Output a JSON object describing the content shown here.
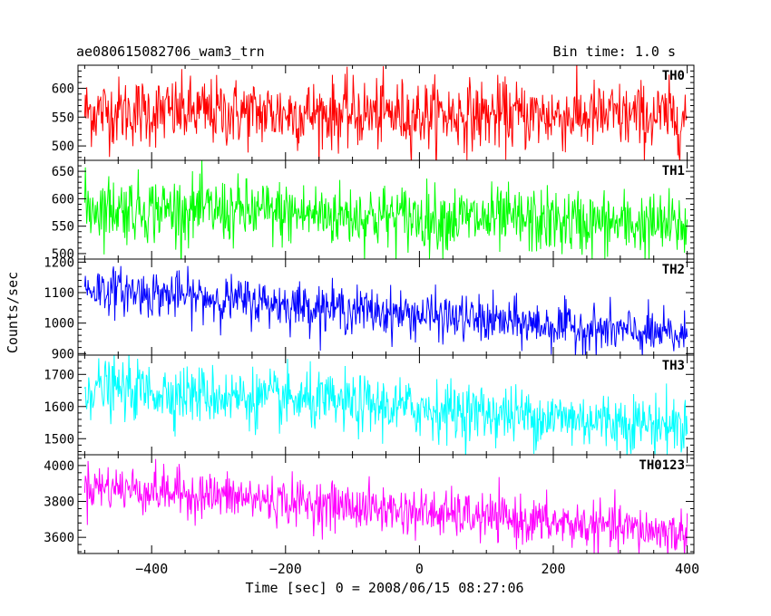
{
  "header": {
    "title": "ae080615082706_wam3_trn",
    "bin_time": "Bin time: 1.0 s"
  },
  "chart_data": {
    "type": "line",
    "xlabel": "Time [sec] 0 = 2008/06/15 08:27:06",
    "ylabel": "Counts/sec",
    "xlim": [
      -510,
      410
    ],
    "x_ticks": [
      -400,
      -200,
      0,
      200,
      400
    ],
    "x_range": [
      -500,
      400
    ],
    "bin_time_s": 1.0,
    "panels": [
      {
        "name": "TH0",
        "color": "#ff0000",
        "ylim": [
          475,
          640
        ],
        "ticks": [
          500,
          550,
          600
        ],
        "trend_start": 560,
        "trend_end": 550,
        "spread": 30
      },
      {
        "name": "TH1",
        "color": "#00ff00",
        "ylim": [
          490,
          670
        ],
        "ticks": [
          500,
          550,
          600,
          650
        ],
        "trend_start": 585,
        "trend_end": 550,
        "spread": 30
      },
      {
        "name": "TH2",
        "color": "#0000ff",
        "ylim": [
          895,
          1210
        ],
        "ticks": [
          900,
          1000,
          1100,
          1200
        ],
        "trend_start": 1115,
        "trend_end": 955,
        "spread": 38
      },
      {
        "name": "TH3",
        "color": "#00ffff",
        "ylim": [
          1450,
          1760
        ],
        "ticks": [
          1500,
          1600,
          1700
        ],
        "trend_start": 1660,
        "trend_end": 1540,
        "spread": 45
      },
      {
        "name": "TH0123",
        "color": "#ff00ff",
        "ylim": [
          3510,
          4060
        ],
        "ticks": [
          3600,
          3800,
          4000
        ],
        "trend_start": 3890,
        "trend_end": 3620,
        "spread": 65
      }
    ]
  }
}
